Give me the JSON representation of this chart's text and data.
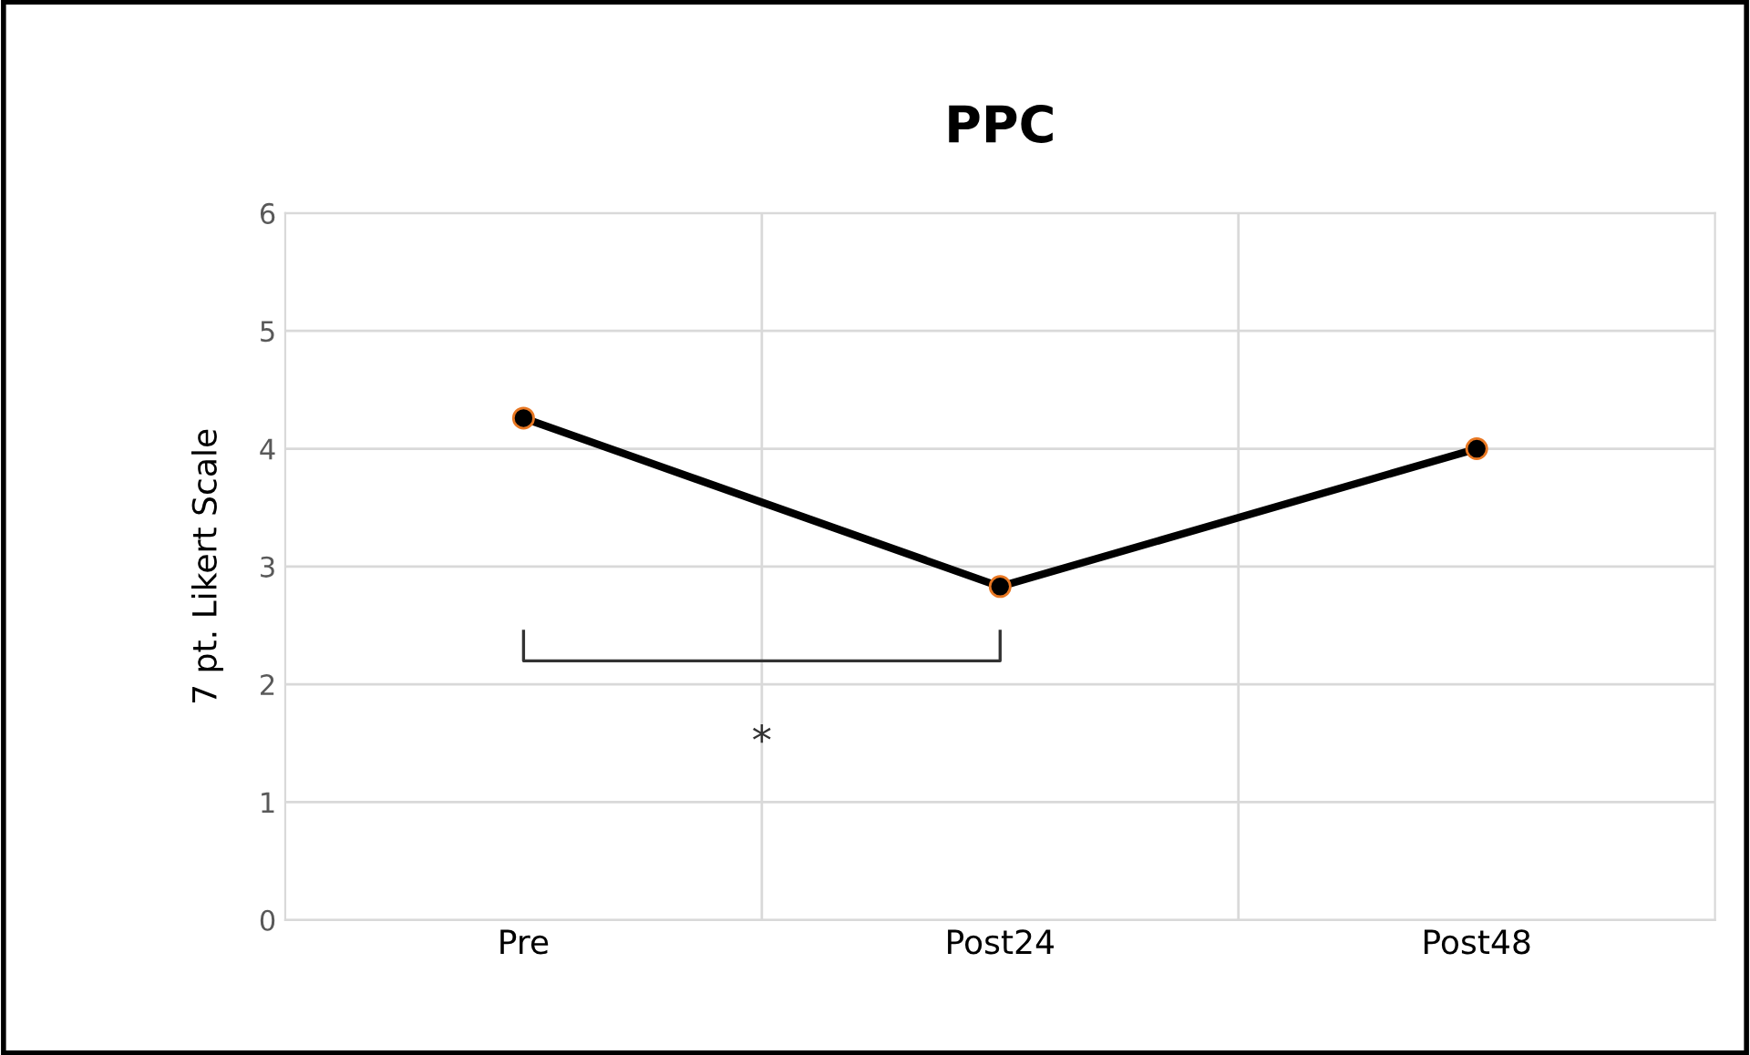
{
  "chart_data": {
    "type": "line",
    "title": "PPC",
    "ylabel": "7 pt. Likert Scale",
    "categories": [
      "Pre",
      "Post24",
      "Post48"
    ],
    "series": [
      {
        "color": "#000000",
        "values": [
          4.26,
          2.83,
          4.0
        ]
      }
    ],
    "ylim": [
      0,
      6
    ],
    "yticks": [
      0,
      1,
      2,
      3,
      4,
      5,
      6
    ],
    "grid": true,
    "marker": "circle",
    "line_style": "solid",
    "annotations": [
      "*"
    ]
  }
}
